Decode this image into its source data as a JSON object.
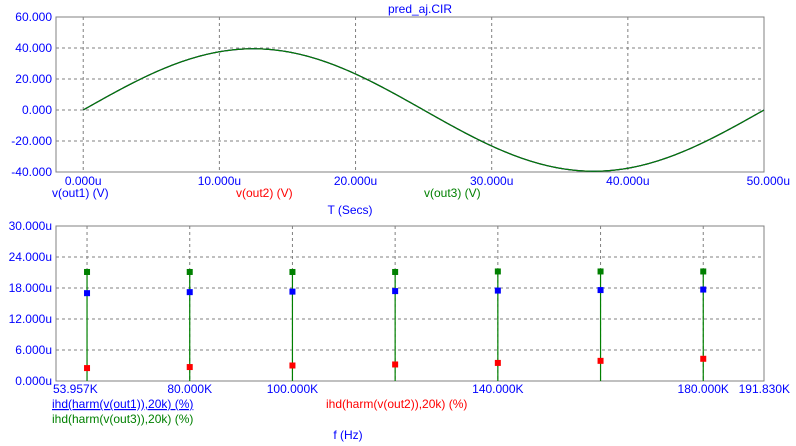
{
  "title": "pred_aj.CIR",
  "chart_data": [
    {
      "type": "line",
      "xlabel": "T (Secs)",
      "xlim": [
        -2e-06,
        5e-05
      ],
      "ylim": [
        -40,
        60
      ],
      "x_ticks": [
        0,
        1e-05,
        2e-05,
        3e-05,
        4e-05,
        5e-05
      ],
      "x_tick_labels": [
        "0.000u",
        "10.000u",
        "20.000u",
        "30.000u",
        "40.000u",
        "50.000u"
      ],
      "y_ticks": [
        -40,
        -20,
        0,
        20,
        40,
        60
      ],
      "y_tick_labels": [
        "-40.000",
        "-20.000",
        "0.000",
        "20.000",
        "40.000",
        "60.000"
      ],
      "grid": true,
      "series": [
        {
          "name": "v(out1) (V)",
          "color": "#0000ff",
          "amplitude": 39.5,
          "frequency_hz": 20000,
          "phase_deg": 0
        },
        {
          "name": "v(out2) (V)",
          "color": "#ff0000",
          "amplitude": 39.5,
          "frequency_hz": 20000,
          "phase_deg": 0
        },
        {
          "name": "v(out3) (V)",
          "color": "#008000",
          "amplitude": 39.5,
          "frequency_hz": 20000,
          "phase_deg": 0
        }
      ]
    },
    {
      "type": "scatter",
      "xlabel": "f (Hz)",
      "xlim": [
        53957,
        191830
      ],
      "ylim": [
        0,
        3e-05
      ],
      "x_ticks": [
        53957,
        80000,
        100000,
        140000,
        180000,
        191830
      ],
      "x_tick_labels": [
        "53.957K",
        "80.000K",
        "100.000K",
        "140.000K",
        "180.000K",
        "191.830K"
      ],
      "y_ticks": [
        0,
        6e-06,
        1.2e-05,
        1.8e-05,
        2.4e-05,
        3e-05
      ],
      "y_tick_labels": [
        "0.000u",
        "6.000u",
        "12.000u",
        "18.000u",
        "24.000u",
        "30.000u"
      ],
      "grid": true,
      "x": [
        60000,
        80000,
        100000,
        120000,
        140000,
        160000,
        180000
      ],
      "series": [
        {
          "name": "ihd(harm(v(out1)),20k) (%)",
          "color": "#0000ff",
          "values": [
            1.7e-05,
            1.72e-05,
            1.73e-05,
            1.74e-05,
            1.75e-05,
            1.76e-05,
            1.77e-05
          ]
        },
        {
          "name": "ihd(harm(v(out2)),20k) (%)",
          "color": "#ff0000",
          "values": [
            2.5e-06,
            2.7e-06,
            3e-06,
            3.2e-06,
            3.5e-06,
            3.9e-06,
            4.3e-06
          ]
        },
        {
          "name": "ihd(harm(v(out3)),20k) (%)",
          "color": "#008000",
          "values": [
            2.11e-05,
            2.11e-05,
            2.11e-05,
            2.11e-05,
            2.12e-05,
            2.12e-05,
            2.12e-05
          ]
        }
      ]
    }
  ]
}
